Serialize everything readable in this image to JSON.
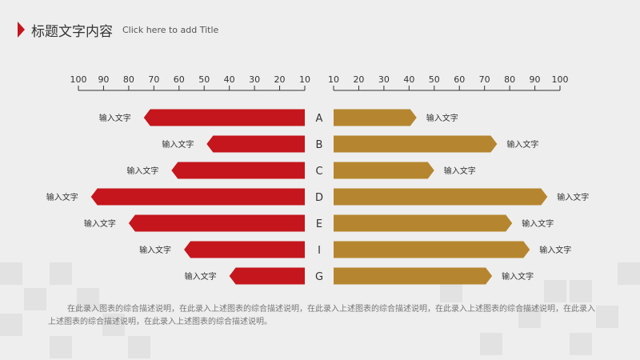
{
  "header": {
    "title": "标题文字内容",
    "subtitle": "Click here to add Title"
  },
  "colors": {
    "left_series": "#c4161c",
    "right_series": "#b5862f",
    "accent": "#c4161c",
    "axis": "#333333"
  },
  "chart_data": {
    "type": "bar",
    "orientation": "horizontal-butterfly",
    "categories": [
      "A",
      "B",
      "C",
      "D",
      "E",
      "I",
      "G"
    ],
    "left_axis": {
      "ticks": [
        100,
        90,
        80,
        70,
        60,
        50,
        40,
        30,
        20,
        10
      ],
      "range": [
        10,
        100
      ],
      "direction": "reversed"
    },
    "right_axis": {
      "ticks": [
        10,
        20,
        30,
        40,
        50,
        60,
        70,
        80,
        90,
        100
      ],
      "range": [
        10,
        100
      ]
    },
    "series": [
      {
        "values": [
          74,
          49,
          63,
          95,
          80,
          58,
          40
        ],
        "labels": [
          "输入文字",
          "输入文字",
          "输入文字",
          "输入文字",
          "输入文字",
          "输入文字",
          "输入文字"
        ]
      },
      {
        "values": [
          43,
          75,
          50,
          95,
          81,
          88,
          73
        ],
        "labels": [
          "输入文字",
          "输入文字",
          "输入文字",
          "输入文字",
          "输入文字",
          "输入文字",
          "输入文字"
        ]
      }
    ],
    "grid": false
  },
  "description": "在此录入图表的综合描述说明，在此录入上述图表的综合描述说明，在此录入上述图表的综合描述说明，在此录入上述图表的综合描述说明，在此录入上述图表的综合描述说明，在此录入上述图表的综合描述说明。"
}
